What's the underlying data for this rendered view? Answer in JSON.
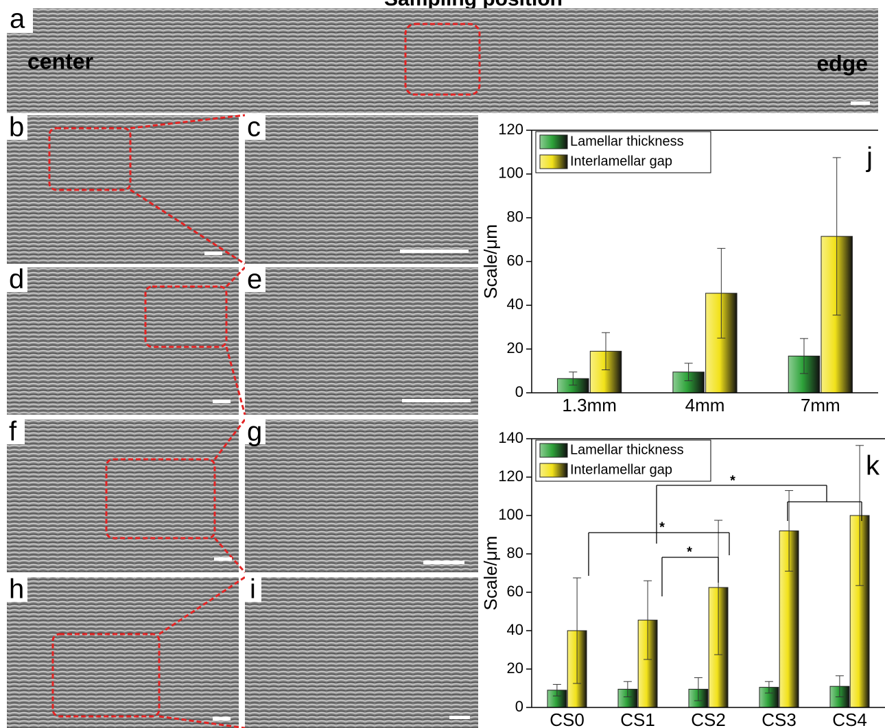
{
  "figure": {
    "title": "Sampling position",
    "panels": [
      "a",
      "b",
      "c",
      "d",
      "e",
      "f",
      "g",
      "h",
      "i"
    ],
    "center_label": "center",
    "edge_label": "edge"
  },
  "chart_data": [
    {
      "type": "bar",
      "panel_label": "j",
      "y_label": "Scale/μm",
      "categories": [
        "1.3mm",
        "4mm",
        "7mm"
      ],
      "series": [
        {
          "name": "Lamellar thickness",
          "color": "#2ea33a",
          "values": [
            6.5,
            9.5,
            16.8
          ],
          "errors": [
            3,
            4,
            8
          ]
        },
        {
          "name": "Interlamellar gap",
          "color": "#f2e21a",
          "values": [
            19,
            45.5,
            71.5
          ],
          "errors": [
            8.5,
            20.5,
            36
          ]
        }
      ],
      "ylim": [
        0,
        120
      ],
      "yticks": [
        0,
        20,
        40,
        60,
        80,
        100,
        120
      ],
      "legend": "top-left"
    },
    {
      "type": "bar",
      "panel_label": "k",
      "y_label": "Scale/μm",
      "categories": [
        "CS0",
        "CS1",
        "CS2",
        "CS3",
        "CS4"
      ],
      "series": [
        {
          "name": "Lamellar thickness",
          "color": "#2ea33a",
          "values": [
            9,
            9.5,
            9.5,
            10.5,
            11
          ],
          "errors": [
            3,
            4,
            6,
            3,
            5.5
          ]
        },
        {
          "name": "Interlamellar gap",
          "color": "#f2e21a",
          "values": [
            40,
            45.5,
            62.5,
            92,
            100
          ],
          "errors": [
            27.5,
            20.5,
            35,
            21,
            36.5
          ]
        }
      ],
      "ylim": [
        0,
        140
      ],
      "yticks": [
        0,
        20,
        40,
        60,
        80,
        100,
        120,
        140
      ],
      "legend": "top-left",
      "annotations": [
        "*",
        "*",
        "*"
      ]
    }
  ]
}
